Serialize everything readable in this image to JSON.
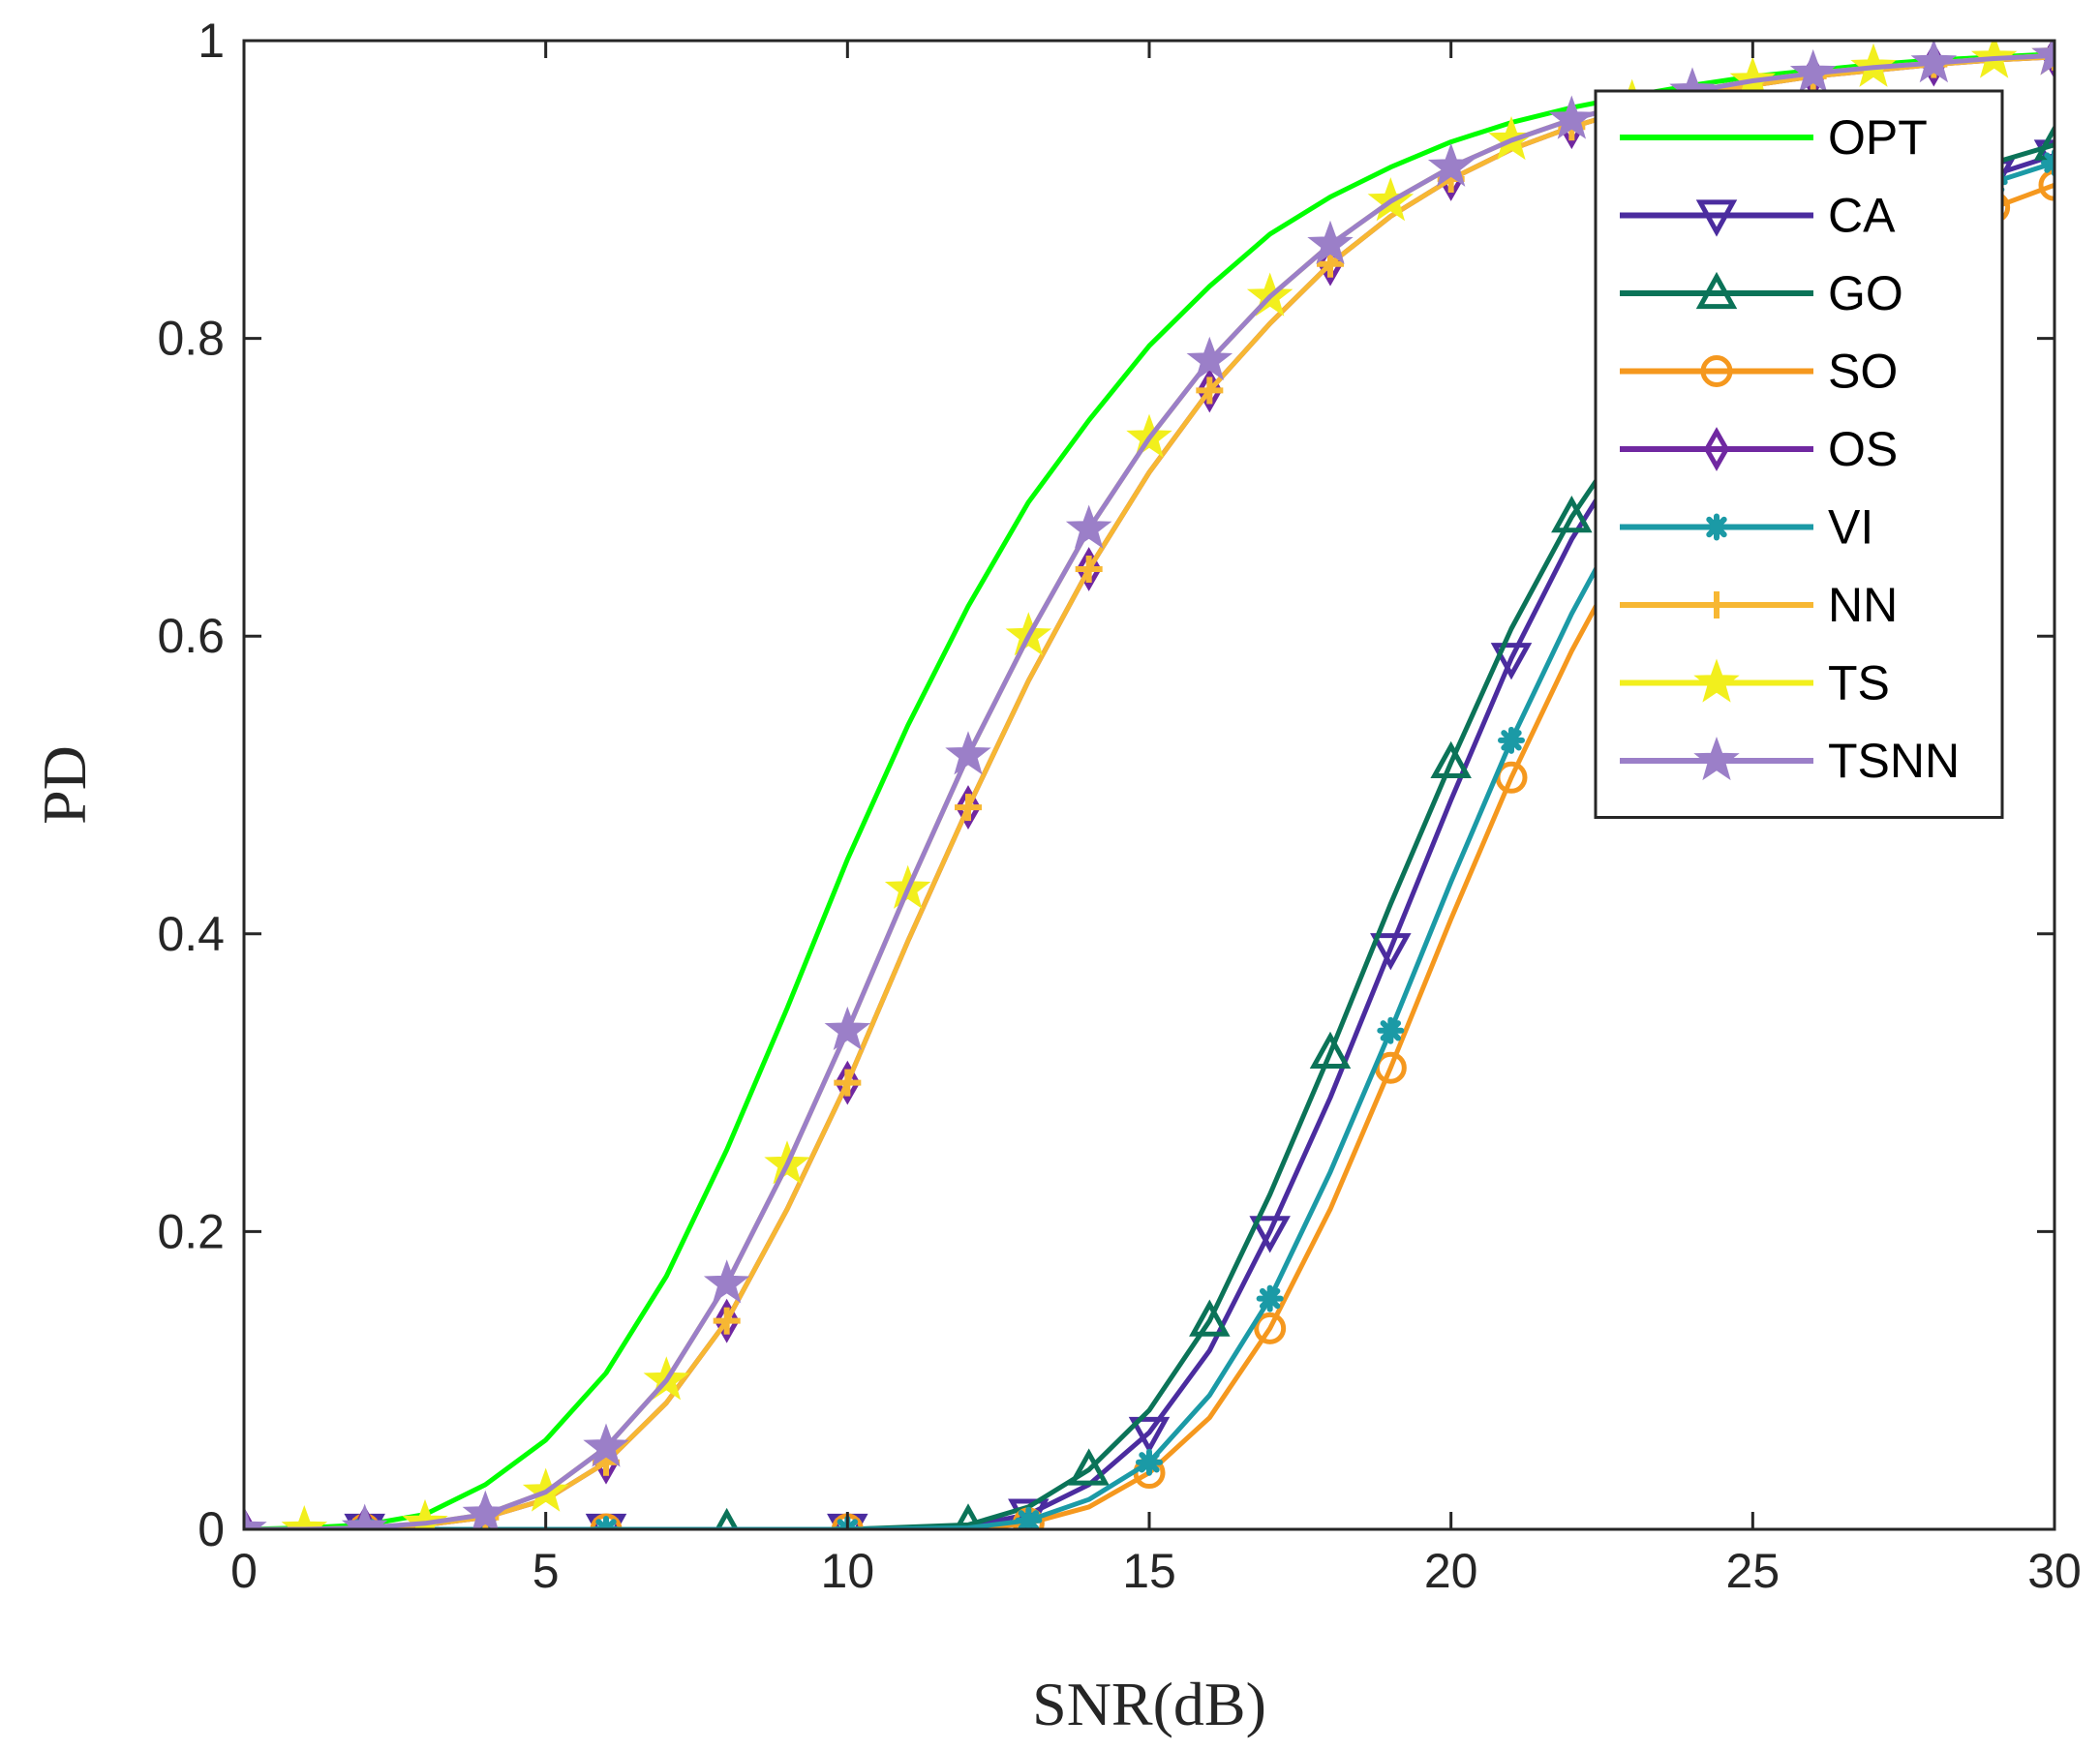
{
  "chart_data": {
    "type": "line",
    "xlabel": "SNR(dB)",
    "ylabel": "PD",
    "xlim": [
      0,
      30
    ],
    "ylim": [
      0,
      1
    ],
    "xticks": [
      0,
      5,
      10,
      15,
      20,
      25,
      30
    ],
    "yticks": [
      0,
      0.2,
      0.4,
      0.6,
      0.8,
      1
    ],
    "ytick_labels": [
      "0",
      "0.2",
      "0.4",
      "0.6",
      "0.8",
      "1"
    ],
    "grid": false,
    "legend_position": "top-right",
    "series": [
      {
        "name": "OPT",
        "color": "#00ff00",
        "marker": "none",
        "x": [
          0,
          1,
          2,
          3,
          4,
          5,
          6,
          7,
          8,
          9,
          10,
          11,
          12,
          13,
          14,
          15,
          16,
          17,
          18,
          19,
          20,
          21,
          22,
          23,
          24,
          25,
          26,
          27,
          28,
          29,
          30
        ],
        "y": [
          0,
          0.001,
          0.003,
          0.01,
          0.03,
          0.06,
          0.105,
          0.17,
          0.255,
          0.35,
          0.45,
          0.54,
          0.62,
          0.69,
          0.745,
          0.795,
          0.835,
          0.87,
          0.895,
          0.915,
          0.932,
          0.945,
          0.955,
          0.963,
          0.97,
          0.976,
          0.98,
          0.984,
          0.987,
          0.989,
          0.991
        ]
      },
      {
        "name": "CA",
        "color": "#4b2c9f",
        "marker": "triangle-down",
        "x": [
          0,
          2,
          4,
          6,
          8,
          10,
          12,
          13,
          14,
          15,
          16,
          17,
          18,
          19,
          20,
          21,
          22,
          23,
          24,
          25,
          26,
          27,
          28,
          29,
          30
        ],
        "y": [
          0,
          0,
          0,
          0,
          0,
          0,
          0.002,
          0.01,
          0.03,
          0.065,
          0.12,
          0.2,
          0.29,
          0.39,
          0.49,
          0.585,
          0.665,
          0.73,
          0.78,
          0.82,
          0.85,
          0.875,
          0.895,
          0.91,
          0.923
        ]
      },
      {
        "name": "GO",
        "color": "#0b7358",
        "marker": "triangle-up",
        "x": [
          0,
          2,
          4,
          6,
          8,
          10,
          12,
          13,
          14,
          15,
          16,
          17,
          18,
          19,
          20,
          21,
          22,
          23,
          24,
          25,
          26,
          27,
          28,
          29,
          30
        ],
        "y": [
          0,
          0,
          0,
          0,
          0,
          0,
          0.003,
          0.015,
          0.04,
          0.08,
          0.14,
          0.225,
          0.32,
          0.42,
          0.515,
          0.605,
          0.68,
          0.74,
          0.79,
          0.83,
          0.86,
          0.885,
          0.903,
          0.918,
          0.93
        ]
      },
      {
        "name": "SO",
        "color": "#f5981e",
        "marker": "circle",
        "x": [
          0,
          2,
          4,
          6,
          8,
          10,
          12,
          13,
          14,
          15,
          16,
          17,
          18,
          19,
          20,
          21,
          22,
          23,
          24,
          25,
          26,
          27,
          28,
          29,
          30
        ],
        "y": [
          0,
          0,
          0,
          0,
          0,
          0,
          0,
          0.004,
          0.015,
          0.038,
          0.075,
          0.135,
          0.215,
          0.31,
          0.41,
          0.505,
          0.59,
          0.665,
          0.725,
          0.775,
          0.815,
          0.845,
          0.87,
          0.888,
          0.903
        ]
      },
      {
        "name": "OS",
        "color": "#7028a1",
        "marker": "diamond",
        "x": [
          0,
          1,
          2,
          3,
          4,
          5,
          6,
          7,
          8,
          9,
          10,
          11,
          12,
          13,
          14,
          15,
          16,
          17,
          18,
          19,
          20,
          21,
          22,
          23,
          24,
          25,
          26,
          27,
          28,
          29,
          30
        ],
        "y": [
          0,
          0,
          0.001,
          0.003,
          0.008,
          0.02,
          0.045,
          0.085,
          0.14,
          0.215,
          0.3,
          0.395,
          0.485,
          0.57,
          0.645,
          0.71,
          0.765,
          0.81,
          0.85,
          0.882,
          0.907,
          0.927,
          0.942,
          0.954,
          0.963,
          0.97,
          0.976,
          0.98,
          0.984,
          0.987,
          0.989
        ]
      },
      {
        "name": "VI",
        "color": "#1b9aa6",
        "marker": "asterisk",
        "x": [
          0,
          2,
          4,
          6,
          8,
          10,
          12,
          13,
          14,
          15,
          16,
          17,
          18,
          19,
          20,
          21,
          22,
          23,
          24,
          25,
          26,
          27,
          28,
          29,
          30
        ],
        "y": [
          0,
          0,
          0,
          0,
          0,
          0,
          0.001,
          0.006,
          0.02,
          0.045,
          0.09,
          0.155,
          0.24,
          0.335,
          0.435,
          0.53,
          0.615,
          0.69,
          0.75,
          0.8,
          0.84,
          0.868,
          0.89,
          0.905,
          0.918
        ]
      },
      {
        "name": "NN",
        "color": "#f7b733",
        "marker": "plus",
        "x": [
          0,
          1,
          2,
          3,
          4,
          5,
          6,
          7,
          8,
          9,
          10,
          11,
          12,
          13,
          14,
          15,
          16,
          17,
          18,
          19,
          20,
          21,
          22,
          23,
          24,
          25,
          26,
          27,
          28,
          29,
          30
        ],
        "y": [
          0,
          0,
          0.001,
          0.003,
          0.008,
          0.02,
          0.045,
          0.085,
          0.14,
          0.215,
          0.3,
          0.395,
          0.485,
          0.57,
          0.645,
          0.71,
          0.765,
          0.81,
          0.85,
          0.882,
          0.907,
          0.927,
          0.942,
          0.954,
          0.963,
          0.97,
          0.976,
          0.98,
          0.984,
          0.987,
          0.989
        ]
      },
      {
        "name": "TS",
        "color": "#f2ef1d",
        "marker": "star",
        "x": [
          0,
          1,
          2,
          3,
          4,
          5,
          6,
          7,
          8,
          9,
          10,
          11,
          12,
          13,
          14,
          15,
          16,
          17,
          18,
          19,
          20,
          21,
          22,
          23,
          24,
          25,
          26,
          27,
          28,
          29,
          30
        ],
        "y": [
          0,
          0,
          0.001,
          0.004,
          0.01,
          0.025,
          0.055,
          0.1,
          0.165,
          0.245,
          0.335,
          0.43,
          0.52,
          0.6,
          0.672,
          0.733,
          0.785,
          0.828,
          0.863,
          0.892,
          0.915,
          0.933,
          0.947,
          0.958,
          0.966,
          0.973,
          0.978,
          0.982,
          0.985,
          0.988,
          0.99
        ]
      },
      {
        "name": "TSNN",
        "color": "#9b7fc8",
        "marker": "star",
        "x": [
          0,
          1,
          2,
          3,
          4,
          5,
          6,
          7,
          8,
          9,
          10,
          11,
          12,
          13,
          14,
          15,
          16,
          17,
          18,
          19,
          20,
          21,
          22,
          23,
          24,
          25,
          26,
          27,
          28,
          29,
          30
        ],
        "y": [
          0,
          0,
          0.001,
          0.004,
          0.01,
          0.025,
          0.055,
          0.1,
          0.165,
          0.245,
          0.335,
          0.43,
          0.52,
          0.6,
          0.672,
          0.733,
          0.785,
          0.828,
          0.863,
          0.892,
          0.915,
          0.933,
          0.947,
          0.958,
          0.966,
          0.973,
          0.978,
          0.982,
          0.985,
          0.988,
          0.99
        ]
      }
    ]
  }
}
